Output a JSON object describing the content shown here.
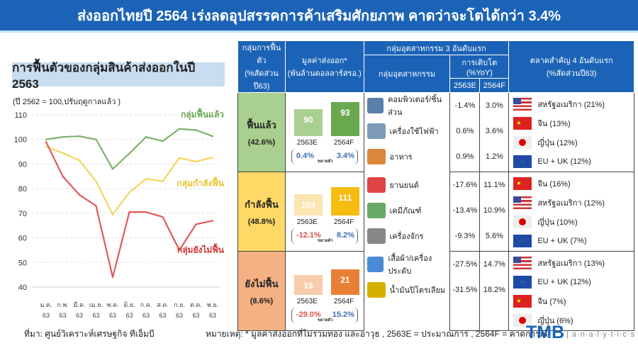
{
  "header": {
    "title": "ส่งออกไทยปี 2564 เร่งลดอุปสรรคการค้าเสริมศักยภาพ คาดว่าจะโตได้กว่า 3.4%"
  },
  "chart_data": {
    "type": "line",
    "title": "การฟื้นตัวของกลุ่มสินค้าส่งออกในปี 2563",
    "ylabel": "(ปี 2562 = 100,ปรับฤดูกาลแล้ว )",
    "ylim": [
      40,
      110
    ],
    "yticks": [
      "110",
      "100",
      "90",
      "80",
      "70",
      "60",
      "50",
      "40"
    ],
    "categories": [
      "ม.ค.",
      "ก.พ.",
      "มี.ค.",
      "เม.ย.",
      "พ.ค.",
      "มิ.ย.",
      "ก.ค.",
      "ส.ค.",
      "ก.ย.",
      "ต.ค.",
      "พ.ย."
    ],
    "cat_year": "63",
    "series": [
      {
        "name": "กลุ่มฟื้นแล้ว",
        "color": "#7fb069",
        "values": [
          100,
          101,
          101.3,
          100,
          88,
          94.3,
          101,
          99.3,
          104.3,
          103.8,
          101.3
        ]
      },
      {
        "name": "กลุ่มกำลังฟื้น",
        "color": "#f2d65a",
        "values": [
          97,
          94.5,
          91.5,
          83,
          69.5,
          78.5,
          84,
          83,
          92.5,
          91,
          92.7
        ]
      },
      {
        "name": "กลุ่มยังไม่ฟื้น",
        "color": "#e05a5a",
        "values": [
          99,
          85,
          77.5,
          73,
          44,
          70.5,
          70.5,
          68.5,
          55,
          65.5,
          67
        ]
      }
    ]
  },
  "table": {
    "h_group": "กลุ่มการฟื้นตัว",
    "h_group_sub": "(%สัดส่วนปี63)",
    "h_value": "มูลค่าส่งออก*",
    "h_value_sub": "(พันล้านดอลลาร์สรอ.)",
    "h_ind3": "กลุ่มอุตสาหกรรม 3 อันดับแรก",
    "h_ind": "กลุ่มอุตสาหกรรม",
    "h_growth": "การเติบโต (%YoY)",
    "h_y1": "2563E",
    "h_y2": "2564F",
    "h_mkt": "ตลาดสำคัญ 4 อันดับแรก",
    "h_mkt_sub": "(%สัดส่วนปี63)",
    "yr1": "2563E",
    "yr2": "2564F",
    "exp": "ขยายตัว",
    "rows": [
      {
        "name": "ฟื้นแล้ว",
        "share": "(42.6%)",
        "bg": "#a9d08e",
        "c1": "#a9d08e",
        "c2": "#6aa84f",
        "v1": "90",
        "v2": "93",
        "g1": "0.4%",
        "g2": "3.4%",
        "g1c": "#3d6fb5",
        "ind": [
          {
            "n": "คอมพิวเตอร์/ชิ้นส่วน",
            "a": "-1.4%",
            "b": "3.0%"
          },
          {
            "n": "เครื่องใช้ไฟฟ้า",
            "a": "0.6%",
            "b": "3.6%"
          },
          {
            "n": "อาหาร",
            "a": "0.9%",
            "b": "1.2%"
          }
        ],
        "mkt": [
          "สหรัฐอเมริกา (21%)",
          "จีน (13%)",
          "ญี่ปุ่น (12%)",
          "EU + UK (12%)"
        ],
        "flags": [
          "us",
          "cn",
          "jp",
          "eu"
        ]
      },
      {
        "name": "กำลังฟื้น",
        "share": "(48.8%)",
        "bg": "#ffd966",
        "c1": "#fbe5b0",
        "c2": "#f6bd10",
        "v1": "103",
        "v2": "111",
        "g1": "-12.1%",
        "g2": "8.2%",
        "g1c": "#d9534f",
        "ind": [
          {
            "n": "ยานยนต์",
            "a": "-17.6%",
            "b": "11.1%"
          },
          {
            "n": "เคมีภัณฑ์",
            "a": "-13.4%",
            "b": "10.9%"
          },
          {
            "n": "เครื่องจักร",
            "a": "-9.3%",
            "b": "5.6%"
          }
        ],
        "mkt": [
          "จีน (16%)",
          "สหรัฐอเมริกา (12%)",
          "ญี่ปุ่น (10%)",
          "EU + UK (7%)"
        ],
        "flags": [
          "cn",
          "us",
          "jp",
          "eu"
        ]
      },
      {
        "name": "ยังไม่ฟื้น",
        "share": "(8.6%)",
        "bg": "#f4b183",
        "c1": "#f8cbad",
        "c2": "#e97f36",
        "v1": "19",
        "v2": "21",
        "g1": "-29.0%",
        "g2": "15.2%",
        "g1c": "#d9534f",
        "ind": [
          {
            "n": "เสื้อผ้า/เครื่องประดับ",
            "a": "-27.5%",
            "b": "14.7%"
          },
          {
            "n": "น้ำมันปิโตรเลียม",
            "a": "-31.5%",
            "b": "18.2%"
          }
        ],
        "mkt": [
          "สหรัฐอเมริกา (13%)",
          "EU + UK (12%)",
          "จีน (7%)",
          "ญี่ปุ่น (6%)"
        ],
        "flags": [
          "us",
          "eu",
          "cn",
          "jp"
        ]
      }
    ]
  },
  "footer": {
    "source": "ที่มา: ศูนย์วิเคราะห์เศรษฐกิจ ทีเอ็มบี",
    "note": "หมายเหตุ: * มูลค่าส่งออกที่ไม่รวมทอง และอาวุธ , 2563E = ประมาณการ , 2564F = คาดการณ์",
    "brand": "TMB",
    "brand_sub": "a·n·a·l·y·t·i·c·s"
  }
}
